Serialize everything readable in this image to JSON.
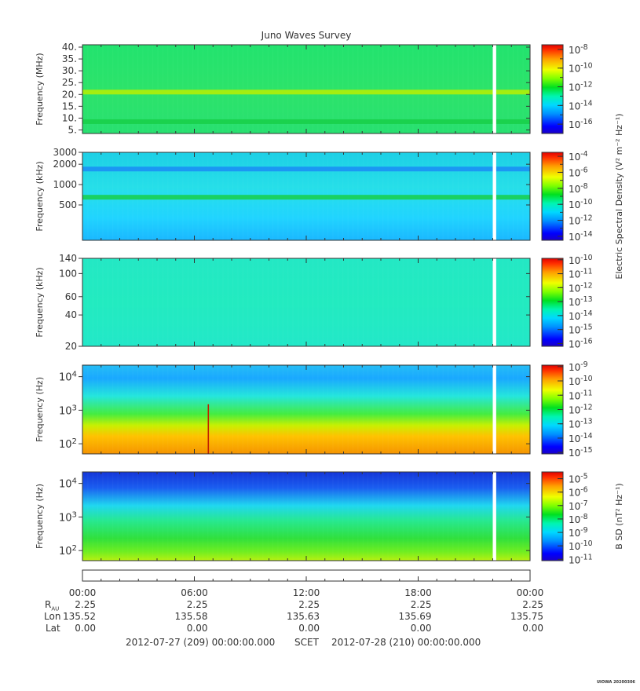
{
  "title": "Juno Waves Survey",
  "chart_data": [
    {
      "type": "heatmap",
      "panel": 1,
      "ylabel": "Frequency (MHz)",
      "yscale": "linear",
      "ylim": [
        3.5,
        41
      ],
      "yticks": [
        "40.",
        "35.",
        "30.",
        "25.",
        "20.",
        "15.",
        "10.",
        "5."
      ],
      "ytick_values": [
        40,
        35,
        30,
        25,
        20,
        15,
        10,
        5
      ],
      "colorbar": {
        "label": "",
        "ticks": [
          "10-8",
          "10-10",
          "10-12",
          "10-14",
          "10-16"
        ],
        "exponents": [
          "-8",
          "-10",
          "-12",
          "-14",
          "-16"
        ],
        "log_range": [
          -17,
          -7.5
        ]
      },
      "bands": [
        {
          "freq": 21,
          "level": "yellow-green"
        },
        {
          "freq": 8.5,
          "level": "green"
        }
      ]
    },
    {
      "type": "heatmap",
      "panel": 2,
      "ylabel": "Frequency (kHz)",
      "yscale": "log",
      "ylim": [
        150,
        3000
      ],
      "yticks": [
        "3000",
        "2000",
        "1000",
        "500"
      ],
      "ytick_values": [
        3000,
        2000,
        1000,
        500
      ],
      "colorbar": {
        "label": "Electric Spectral Density (V² m⁻² Hz⁻¹)",
        "ticks": [
          "10-4",
          "10-6",
          "10-8",
          "10-10",
          "10-12",
          "10-14"
        ],
        "exponents": [
          "-4",
          "-6",
          "-8",
          "-10",
          "-12",
          "-14"
        ],
        "log_range": [
          -14.5,
          -3.5
        ]
      },
      "bands": [
        {
          "freq": 1700,
          "level": "blue"
        },
        {
          "freq": 650,
          "level": "green"
        }
      ]
    },
    {
      "type": "heatmap",
      "panel": 3,
      "ylabel": "Frequency (kHz)",
      "yscale": "log",
      "ylim": [
        20,
        140
      ],
      "yticks": [
        "140",
        "100",
        "60",
        "40",
        "20"
      ],
      "ytick_values": [
        140,
        100,
        60,
        40,
        20
      ],
      "colorbar": {
        "label": "",
        "ticks": [
          "10-10",
          "10-11",
          "10-12",
          "10-13",
          "10-14",
          "10-15",
          "10-16"
        ],
        "exponents": [
          "-10",
          "-11",
          "-12",
          "-13",
          "-14",
          "-15",
          "-16"
        ],
        "log_range": [
          -16.2,
          -9.9
        ]
      }
    },
    {
      "type": "heatmap",
      "panel": 4,
      "ylabel": "Frequency (Hz)",
      "yscale": "log",
      "ylim": [
        50,
        22000
      ],
      "yticks": [
        "10^4",
        "10^3",
        "10^2"
      ],
      "ytick_values": [
        10000,
        1000,
        100
      ],
      "colorbar": {
        "label": "",
        "ticks": [
          "10-9",
          "10-10",
          "10-11",
          "10-12",
          "10-13",
          "10-14",
          "10-15"
        ],
        "exponents": [
          "-9",
          "-10",
          "-11",
          "-12",
          "-13",
          "-14",
          "-15"
        ],
        "log_range": [
          -15.1,
          -8.9
        ]
      },
      "spike": {
        "time_hours": 6.75,
        "freq_top": 1500
      }
    },
    {
      "type": "heatmap",
      "panel": 5,
      "ylabel": "Frequency (Hz)",
      "yscale": "log",
      "ylim": [
        50,
        22000
      ],
      "yticks": [
        "10^4",
        "10^3",
        "10^2"
      ],
      "ytick_values": [
        10000,
        1000,
        100
      ],
      "colorbar": {
        "label": "B SD (nT² Hz⁻¹)",
        "ticks": [
          "10-5",
          "10-6",
          "10-7",
          "10-8",
          "10-9",
          "10-10",
          "10-11"
        ],
        "exponents": [
          "-5",
          "-6",
          "-7",
          "-8",
          "-9",
          "-10",
          "-11"
        ],
        "log_range": [
          -11.1,
          -4.5
        ]
      }
    }
  ],
  "xaxis": {
    "range_hours": [
      0,
      24
    ],
    "data_gap_hours": [
      22.0,
      22.1
    ],
    "ticks": [
      "00:00",
      "06:00",
      "12:00",
      "18:00",
      "00:00"
    ],
    "tick_hours": [
      0,
      6,
      12,
      18,
      24
    ]
  },
  "ephemeris": {
    "rau_label": "R",
    "rau_sub": "AU",
    "lon_label": "Lon",
    "lat_label": "Lat",
    "rau": [
      "2.25",
      "2.25",
      "2.25",
      "2.25",
      "2.25"
    ],
    "lon": [
      "135.52",
      "135.58",
      "135.63",
      "135.69",
      "135.75"
    ],
    "lat": [
      "0.00",
      "0.00",
      "0.00",
      "0.00",
      "0.00"
    ]
  },
  "footer": {
    "start": "2012-07-27 (209) 00:00:00.000",
    "mid": "SCET",
    "end": "2012-07-28 (210) 00:00:00.000"
  },
  "stamp": "UIOWA 20200306"
}
